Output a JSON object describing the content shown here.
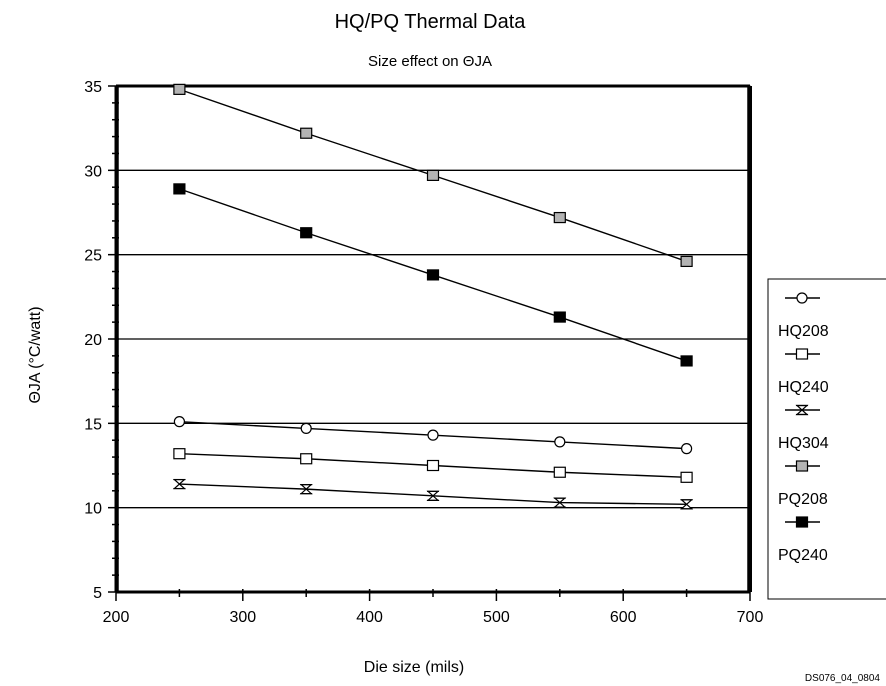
{
  "chart_data": {
    "type": "line",
    "title": "HQ/PQ Thermal Data",
    "subtitle": "Size effect on ΘJA",
    "xlabel": "Die size (mils)",
    "ylabel": "ΘJA (°C/watt)",
    "xlim": [
      200,
      700
    ],
    "ylim": [
      5,
      35
    ],
    "xticks": [
      "200",
      "300",
      "400",
      "500",
      "600",
      "700"
    ],
    "yticks": [
      "5",
      "10",
      "15",
      "20",
      "25",
      "30",
      "35"
    ],
    "grid": "horizontal",
    "legend_position": "right",
    "x": [
      250,
      350,
      450,
      550,
      650
    ],
    "series": [
      {
        "name": "HQ208",
        "marker": "circle",
        "values": [
          15.1,
          14.7,
          14.3,
          13.9,
          13.5
        ]
      },
      {
        "name": "HQ240",
        "marker": "open-square",
        "values": [
          13.2,
          12.9,
          12.5,
          12.1,
          11.8
        ]
      },
      {
        "name": "HQ304",
        "marker": "hourglass",
        "values": [
          11.4,
          11.1,
          10.7,
          10.3,
          10.2
        ]
      },
      {
        "name": "PQ208",
        "marker": "gray-square",
        "values": [
          34.8,
          32.2,
          29.7,
          27.2,
          24.6
        ]
      },
      {
        "name": "PQ240",
        "marker": "black-square",
        "values": [
          28.9,
          26.3,
          23.8,
          21.3,
          18.7
        ]
      }
    ]
  },
  "footnote": "DS076_04_0804",
  "colors": {
    "line": "#000000",
    "gray_marker": "#b3b3b3",
    "black_marker": "#000000"
  }
}
